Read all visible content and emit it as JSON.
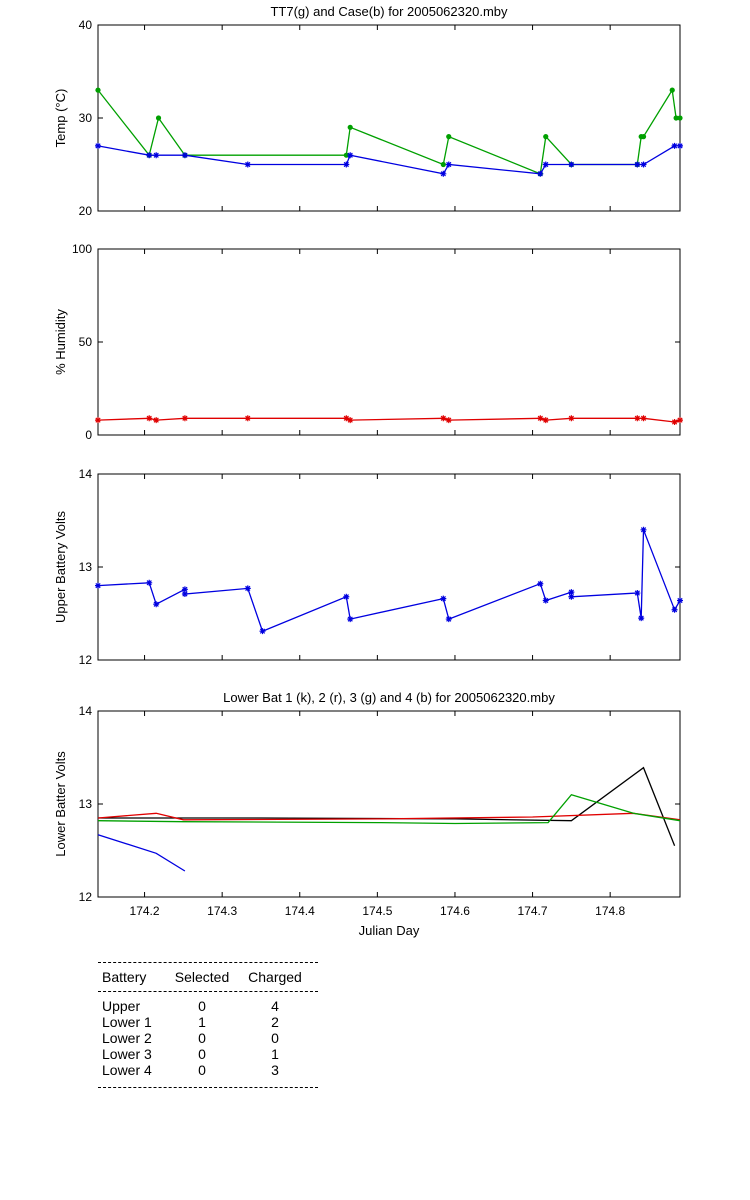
{
  "chart_data": [
    {
      "type": "line",
      "title": "TT7(g) and Case(b) for 2005062320.mby",
      "xlabel": "",
      "ylabel": "Temp  (°C)",
      "xlim": [
        174.14,
        174.89
      ],
      "ylim": [
        20,
        40
      ],
      "yticks": [
        "20",
        "30",
        "40"
      ],
      "grid": false,
      "series": [
        {
          "color": "#00a000",
          "marker": "dot",
          "x": [
            174.14,
            174.206,
            174.218,
            174.252,
            174.46,
            174.465,
            174.585,
            174.592,
            174.71,
            174.717,
            174.75,
            174.835,
            174.84,
            174.843,
            174.88,
            174.885,
            174.89
          ],
          "y": [
            33,
            26,
            30,
            26,
            26,
            29,
            25,
            28,
            24,
            28,
            25,
            25,
            28,
            28,
            33,
            30,
            30
          ]
        },
        {
          "color": "#0000e0",
          "marker": "star",
          "x": [
            174.14,
            174.206,
            174.215,
            174.252,
            174.333,
            174.46,
            174.465,
            174.585,
            174.592,
            174.71,
            174.717,
            174.75,
            174.835,
            174.843,
            174.883,
            174.89
          ],
          "y": [
            27,
            26,
            26,
            26,
            25,
            25,
            26,
            24,
            25,
            24,
            25,
            25,
            25,
            25,
            27,
            27
          ]
        }
      ]
    },
    {
      "type": "line",
      "title": "",
      "xlabel": "",
      "ylabel": "% Humidity",
      "xlim": [
        174.14,
        174.89
      ],
      "ylim": [
        0,
        100
      ],
      "yticks": [
        "0",
        "50",
        "100"
      ],
      "grid": false,
      "series": [
        {
          "color": "#e00000",
          "marker": "star",
          "x": [
            174.14,
            174.206,
            174.215,
            174.252,
            174.333,
            174.46,
            174.465,
            174.585,
            174.592,
            174.71,
            174.717,
            174.75,
            174.835,
            174.843,
            174.883,
            174.89
          ],
          "y": [
            8,
            9,
            8,
            9,
            9,
            9,
            8,
            9,
            8,
            9,
            8,
            9,
            9,
            9,
            7,
            8
          ]
        }
      ]
    },
    {
      "type": "line",
      "title": "",
      "xlabel": "",
      "ylabel": "Upper Battery Volts",
      "xlim": [
        174.14,
        174.89
      ],
      "ylim": [
        12,
        14
      ],
      "yticks": [
        "12",
        "13",
        "14"
      ],
      "grid": false,
      "series": [
        {
          "color": "#0000e0",
          "marker": "star",
          "x": [
            174.14,
            174.206,
            174.215,
            174.252,
            174.252,
            174.333,
            174.352,
            174.46,
            174.465,
            174.585,
            174.592,
            174.71,
            174.717,
            174.75,
            174.75,
            174.835,
            174.84,
            174.843,
            174.883,
            174.89
          ],
          "y": [
            12.8,
            12.83,
            12.6,
            12.76,
            12.71,
            12.77,
            12.31,
            12.68,
            12.44,
            12.66,
            12.44,
            12.82,
            12.64,
            12.73,
            12.68,
            12.72,
            12.45,
            13.4,
            12.54,
            12.64
          ]
        }
      ]
    },
    {
      "type": "line",
      "title": "Lower Bat 1 (k), 2 (r), 3 (g) and 4 (b) for 2005062320.mby",
      "xlabel": "Julian Day",
      "ylabel": "Lower Batter Volts",
      "xlim": [
        174.14,
        174.89
      ],
      "ylim": [
        12,
        14
      ],
      "yticks": [
        "12",
        "13",
        "14"
      ],
      "xticks": [
        "174.2",
        "174.3",
        "174.4",
        "174.5",
        "174.6",
        "174.7",
        "174.8"
      ],
      "grid": false,
      "series": [
        {
          "color": "#000000",
          "marker": "none",
          "x": [
            174.14,
            174.25,
            174.35,
            174.6,
            174.75,
            174.843,
            174.883
          ],
          "y": [
            12.85,
            12.85,
            12.85,
            12.84,
            12.82,
            13.39,
            12.55
          ]
        },
        {
          "color": "#e00000",
          "marker": "none",
          "x": [
            174.14,
            174.215,
            174.25,
            174.5,
            174.7,
            174.83,
            174.89
          ],
          "y": [
            12.85,
            12.9,
            12.83,
            12.84,
            12.86,
            12.9,
            12.83
          ]
        },
        {
          "color": "#00a000",
          "marker": "none",
          "x": [
            174.14,
            174.25,
            174.5,
            174.6,
            174.72,
            174.75,
            174.83,
            174.89
          ],
          "y": [
            12.82,
            12.81,
            12.8,
            12.79,
            12.8,
            13.1,
            12.9,
            12.82
          ]
        },
        {
          "color": "#0000e0",
          "marker": "none",
          "x": [
            174.14,
            174.215,
            174.252
          ],
          "y": [
            12.67,
            12.47,
            12.28
          ]
        }
      ]
    }
  ],
  "battery_table": {
    "headers": [
      "Battery",
      "Selected",
      "Charged"
    ],
    "rows": [
      [
        "Upper",
        "0",
        "4"
      ],
      [
        "Lower 1",
        "1",
        "2"
      ],
      [
        "Lower 2",
        "0",
        "0"
      ],
      [
        "Lower 3",
        "0",
        "1"
      ],
      [
        "Lower 4",
        "0",
        "3"
      ]
    ]
  }
}
